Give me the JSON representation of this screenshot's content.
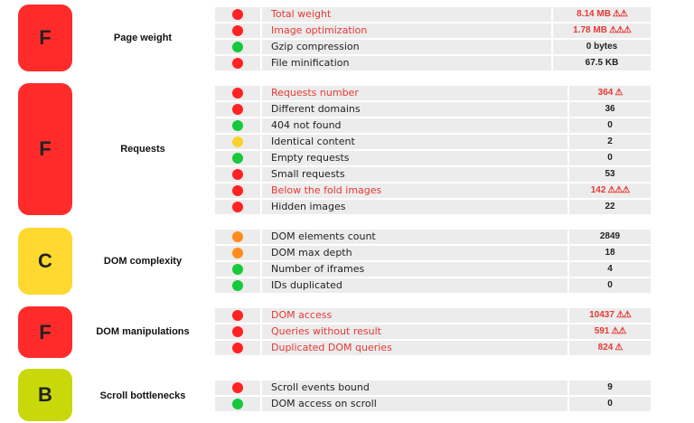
{
  "colors": {
    "red": "#ff2b2b",
    "yellow": "#ffd830",
    "lime": "#c9d80a",
    "dot_red": "#ff2222",
    "dot_green": "#16c93b",
    "dot_yellow": "#f7d22a",
    "dot_orange": "#ff8c1a",
    "text_bad": "#e53935"
  },
  "sections": [
    {
      "grade": "F",
      "grade_color": "red",
      "category": "Page weight",
      "rows": [
        {
          "status": "red",
          "label": "Total weight",
          "value": "8.14 MB",
          "warnings": 2,
          "alert": true
        },
        {
          "status": "red",
          "label": "Image optimization",
          "value": "1.78 MB",
          "warnings": 3,
          "alert": true
        },
        {
          "status": "green",
          "label": "Gzip compression",
          "value": "0 bytes",
          "warnings": 0,
          "alert": false
        },
        {
          "status": "red",
          "label": "File minification",
          "value": "67.5 KB",
          "warnings": 0,
          "alert": false
        }
      ]
    },
    {
      "grade": "F",
      "grade_color": "red",
      "category": "Requests",
      "rows": [
        {
          "status": "red",
          "label": "Requests number",
          "value": "364",
          "warnings": 1,
          "alert": true
        },
        {
          "status": "red",
          "label": "Different domains",
          "value": "36",
          "warnings": 0,
          "alert": false
        },
        {
          "status": "green",
          "label": "404 not found",
          "value": "0",
          "warnings": 0,
          "alert": false
        },
        {
          "status": "yellow",
          "label": "Identical content",
          "value": "2",
          "warnings": 0,
          "alert": false
        },
        {
          "status": "green",
          "label": "Empty requests",
          "value": "0",
          "warnings": 0,
          "alert": false
        },
        {
          "status": "red",
          "label": "Small requests",
          "value": "53",
          "warnings": 0,
          "alert": false
        },
        {
          "status": "red",
          "label": "Below the fold images",
          "value": "142",
          "warnings": 3,
          "alert": true
        },
        {
          "status": "red",
          "label": "Hidden images",
          "value": "22",
          "warnings": 0,
          "alert": false
        }
      ]
    },
    {
      "grade": "C",
      "grade_color": "yellow",
      "category": "DOM complexity",
      "rows": [
        {
          "status": "orange",
          "label": "DOM elements count",
          "value": "2849",
          "warnings": 0,
          "alert": false
        },
        {
          "status": "orange",
          "label": "DOM max depth",
          "value": "18",
          "warnings": 0,
          "alert": false
        },
        {
          "status": "green",
          "label": "Number of iframes",
          "value": "4",
          "warnings": 0,
          "alert": false
        },
        {
          "status": "green",
          "label": "IDs duplicated",
          "value": "0",
          "warnings": 0,
          "alert": false
        }
      ]
    },
    {
      "grade": "F",
      "grade_color": "red",
      "category": "DOM manipulations",
      "rows": [
        {
          "status": "red",
          "label": "DOM access",
          "value": "10437",
          "warnings": 2,
          "alert": true
        },
        {
          "status": "red",
          "label": "Queries without result",
          "value": "591",
          "warnings": 2,
          "alert": true
        },
        {
          "status": "red",
          "label": "Duplicated DOM queries",
          "value": "824",
          "warnings": 1,
          "alert": true
        }
      ]
    },
    {
      "grade": "B",
      "grade_color": "lime",
      "category": "Scroll bottlenecks",
      "rows": [
        {
          "status": "red",
          "label": "Scroll events bound",
          "value": "9",
          "warnings": 0,
          "alert": false
        },
        {
          "status": "green",
          "label": "DOM access on scroll",
          "value": "0",
          "warnings": 0,
          "alert": false
        }
      ]
    }
  ]
}
